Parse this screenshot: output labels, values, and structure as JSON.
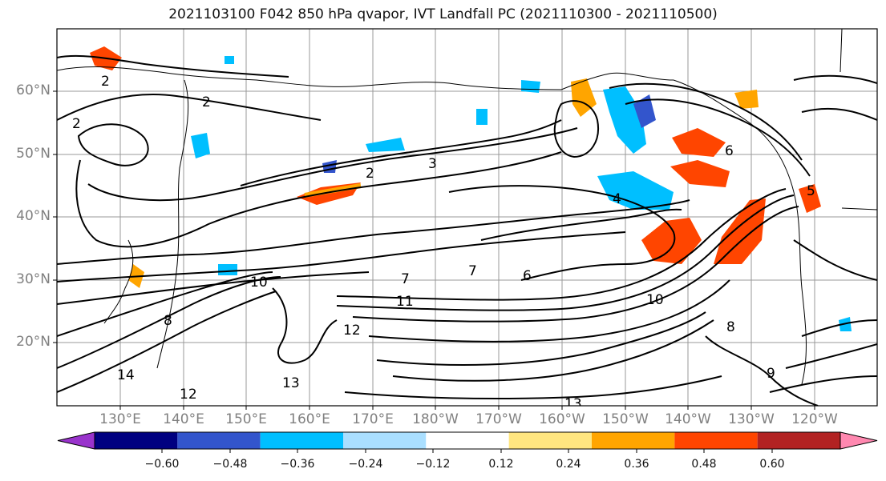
{
  "title": "2021103100 F042 850 hPa qvapor, IVT Landfall PC (2021110300 - 2021110500)",
  "lat_labels": [
    "60°N",
    "50°N",
    "40°N",
    "30°N",
    "20°N"
  ],
  "lon_labels": [
    "130°E",
    "140°E",
    "150°E",
    "160°E",
    "170°E",
    "180°W",
    "170°W",
    "160°W",
    "150°W",
    "140°W",
    "130°W",
    "120°W"
  ],
  "colorbar": {
    "colors": [
      "#9933cc",
      "#000080",
      "#3355cc",
      "#00bfff",
      "#aadfff",
      "#ffffff",
      "#ffe680",
      "#ffa500",
      "#ff4500",
      "#b22222",
      "#ff88b0"
    ],
    "tick_labels": [
      "−0.60",
      "−0.48",
      "−0.36",
      "−0.24",
      "−0.12",
      "0.12",
      "0.24",
      "0.36",
      "0.48",
      "0.60"
    ]
  },
  "contour_labels": [
    "2",
    "2",
    "2",
    "2",
    "3",
    "6",
    "10",
    "10",
    "7",
    "11",
    "12",
    "13",
    "13",
    "12",
    "14",
    "5",
    "4",
    "6",
    "7",
    "8",
    "9",
    "8"
  ],
  "legend_note": ""
}
